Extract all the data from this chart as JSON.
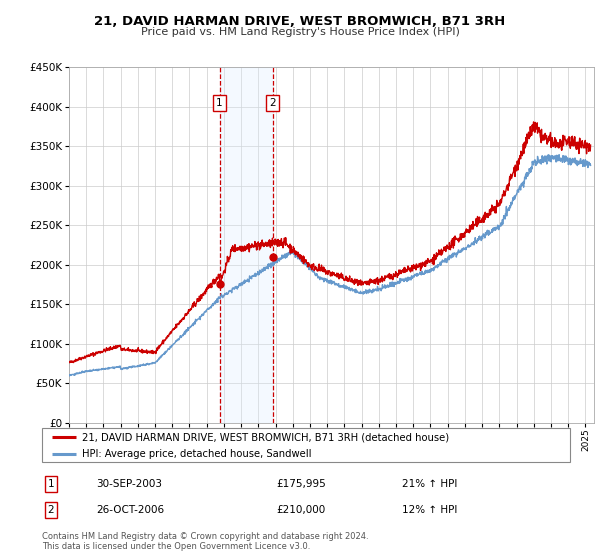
{
  "title": "21, DAVID HARMAN DRIVE, WEST BROMWICH, B71 3RH",
  "subtitle": "Price paid vs. HM Land Registry's House Price Index (HPI)",
  "legend_line1": "21, DAVID HARMAN DRIVE, WEST BROMWICH, B71 3RH (detached house)",
  "legend_line2": "HPI: Average price, detached house, Sandwell",
  "transaction1_label": "1",
  "transaction1_date": "30-SEP-2003",
  "transaction1_price": "£175,995",
  "transaction1_hpi": "21% ↑ HPI",
  "transaction1_x": 2003.75,
  "transaction1_y": 175995,
  "transaction2_label": "2",
  "transaction2_date": "26-OCT-2006",
  "transaction2_price": "£210,000",
  "transaction2_hpi": "12% ↑ HPI",
  "transaction2_x": 2006.83,
  "transaction2_y": 210000,
  "footnote1": "Contains HM Land Registry data © Crown copyright and database right 2024.",
  "footnote2": "This data is licensed under the Open Government Licence v3.0.",
  "red_color": "#cc0000",
  "blue_color": "#6699cc",
  "blue_fill": "#ddeeff",
  "background_color": "#ffffff",
  "grid_color": "#cccccc",
  "ylim": [
    0,
    450000
  ],
  "xlim_start": 1995.0,
  "xlim_end": 2025.5,
  "shaded_x_start": 2003.75,
  "shaded_x_end": 2006.83
}
